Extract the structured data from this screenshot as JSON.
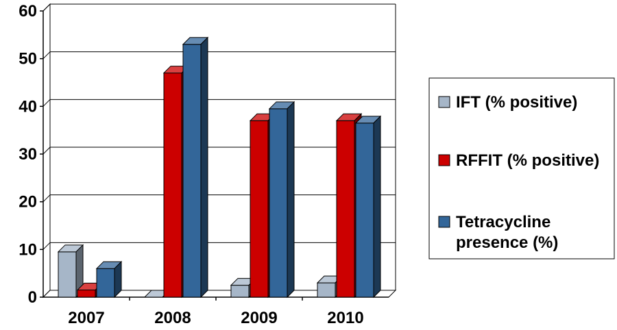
{
  "chart_data": {
    "type": "bar",
    "style": "3d-clustered-column",
    "title": "",
    "xlabel": "",
    "ylabel": "",
    "categories": [
      "2007",
      "2008",
      "2009",
      "2010"
    ],
    "ylim": [
      0,
      60
    ],
    "yticks": [
      "0",
      "10",
      "20",
      "30",
      "40",
      "50",
      "60"
    ],
    "grid": true,
    "legend_position": "right",
    "series": [
      {
        "name": "IFT (% positive)",
        "color": "#a6b6c8",
        "values": [
          9.5,
          0,
          2.5,
          3
        ]
      },
      {
        "name": "RFFIT (% positive)",
        "color": "#cc0000",
        "values": [
          1.5,
          47,
          37,
          37
        ]
      },
      {
        "name": "Tetracycline presence (%)",
        "color": "#336699",
        "values": [
          6,
          53,
          39.5,
          36.5
        ]
      }
    ]
  }
}
